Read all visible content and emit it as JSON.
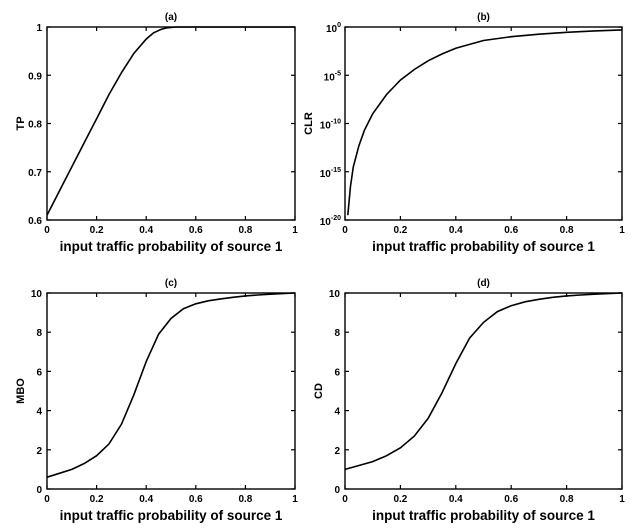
{
  "chart_data": [
    {
      "panel": "(a)",
      "type": "line",
      "title": "(a)",
      "xlabel": "input traffic probability of source 1",
      "ylabel": "TP",
      "xlim": [
        0,
        1
      ],
      "ylim": [
        0.6,
        1
      ],
      "xticks": [
        0,
        0.2,
        0.4,
        0.6,
        0.8,
        1
      ],
      "xtick_labels": [
        "0",
        "0.2",
        "0.4",
        "0.6",
        "0.8",
        "1"
      ],
      "yticks": [
        0.6,
        0.7,
        0.8,
        0.9,
        1
      ],
      "ytick_labels": [
        "0.6",
        "0.7",
        "0.8",
        "0.9",
        "1"
      ],
      "yscale": "linear",
      "grid": false,
      "series": [
        {
          "x": [
            0,
            0.05,
            0.1,
            0.15,
            0.2,
            0.25,
            0.3,
            0.35,
            0.4,
            0.43,
            0.46,
            0.48,
            0.5,
            0.52,
            0.55,
            0.6,
            0.7,
            0.8,
            0.9,
            1.0
          ],
          "y": [
            0.61,
            0.66,
            0.71,
            0.76,
            0.81,
            0.86,
            0.905,
            0.945,
            0.975,
            0.988,
            0.995,
            0.998,
            0.999,
            1.0,
            1.0,
            1.0,
            1.0,
            1.0,
            1.0,
            1.0
          ]
        }
      ]
    },
    {
      "panel": "(b)",
      "type": "line",
      "title": "(b)",
      "xlabel": "input traffic probability of source 1",
      "ylabel": "CLR",
      "xlim": [
        0,
        1
      ],
      "ylim": [
        -20,
        0
      ],
      "yscale": "log",
      "xticks": [
        0,
        0.2,
        0.4,
        0.6,
        0.8,
        1
      ],
      "xtick_labels": [
        "0",
        "0.2",
        "0.4",
        "0.6",
        "0.8",
        "1"
      ],
      "yticks": [
        0,
        -5,
        -10,
        -15,
        -20
      ],
      "ytick_labels": [
        {
          "base": "10",
          "exp": "0"
        },
        {
          "base": "10",
          "exp": "-5"
        },
        {
          "base": "10",
          "exp": "-10"
        },
        {
          "base": "10",
          "exp": "-15"
        },
        {
          "base": "10",
          "exp": "-20"
        }
      ],
      "grid": false,
      "series": [
        {
          "x": [
            0.01,
            0.02,
            0.03,
            0.05,
            0.07,
            0.1,
            0.15,
            0.2,
            0.25,
            0.3,
            0.35,
            0.4,
            0.45,
            0.5,
            0.6,
            0.7,
            0.8,
            0.9,
            1.0
          ],
          "log10_y": [
            -19.5,
            -16.5,
            -14.5,
            -12.3,
            -10.7,
            -9.0,
            -7.0,
            -5.5,
            -4.4,
            -3.5,
            -2.8,
            -2.2,
            -1.8,
            -1.4,
            -1.0,
            -0.75,
            -0.55,
            -0.4,
            -0.3
          ]
        }
      ]
    },
    {
      "panel": "(c)",
      "type": "line",
      "title": "(c)",
      "xlabel": "input traffic probability of source 1",
      "ylabel": "MBO",
      "xlim": [
        0,
        1
      ],
      "ylim": [
        0,
        10
      ],
      "yscale": "linear",
      "xticks": [
        0,
        0.2,
        0.4,
        0.6,
        0.8,
        1
      ],
      "xtick_labels": [
        "0",
        "0.2",
        "0.4",
        "0.6",
        "0.8",
        "1"
      ],
      "yticks": [
        0,
        2,
        4,
        6,
        8,
        10
      ],
      "ytick_labels": [
        "0",
        "2",
        "4",
        "6",
        "8",
        "10"
      ],
      "grid": false,
      "series": [
        {
          "x": [
            0,
            0.05,
            0.1,
            0.15,
            0.2,
            0.25,
            0.3,
            0.35,
            0.4,
            0.45,
            0.5,
            0.55,
            0.6,
            0.65,
            0.7,
            0.75,
            0.8,
            0.85,
            0.9,
            0.95,
            1.0
          ],
          "y": [
            0.6,
            0.8,
            1.0,
            1.3,
            1.7,
            2.3,
            3.3,
            4.8,
            6.5,
            7.9,
            8.7,
            9.2,
            9.45,
            9.6,
            9.7,
            9.78,
            9.85,
            9.9,
            9.94,
            9.97,
            10.0
          ]
        }
      ]
    },
    {
      "panel": "(d)",
      "type": "line",
      "title": "(d)",
      "xlabel": "input traffic probability of source 1",
      "ylabel": "CD",
      "xlim": [
        0,
        1
      ],
      "ylim": [
        0,
        10
      ],
      "yscale": "linear",
      "xticks": [
        0,
        0.2,
        0.4,
        0.6,
        0.8,
        1
      ],
      "xtick_labels": [
        "0",
        "0.2",
        "0.4",
        "0.6",
        "0.8",
        "1"
      ],
      "yticks": [
        0,
        2,
        4,
        6,
        8,
        10
      ],
      "ytick_labels": [
        "0",
        "2",
        "4",
        "6",
        "8",
        "10"
      ],
      "grid": false,
      "series": [
        {
          "x": [
            0,
            0.05,
            0.1,
            0.15,
            0.2,
            0.25,
            0.3,
            0.35,
            0.4,
            0.45,
            0.5,
            0.55,
            0.6,
            0.65,
            0.7,
            0.75,
            0.8,
            0.85,
            0.9,
            0.95,
            1.0
          ],
          "y": [
            1.0,
            1.2,
            1.4,
            1.7,
            2.1,
            2.7,
            3.6,
            4.9,
            6.4,
            7.7,
            8.5,
            9.05,
            9.35,
            9.55,
            9.68,
            9.78,
            9.85,
            9.9,
            9.94,
            9.97,
            10.0
          ]
        }
      ]
    }
  ]
}
